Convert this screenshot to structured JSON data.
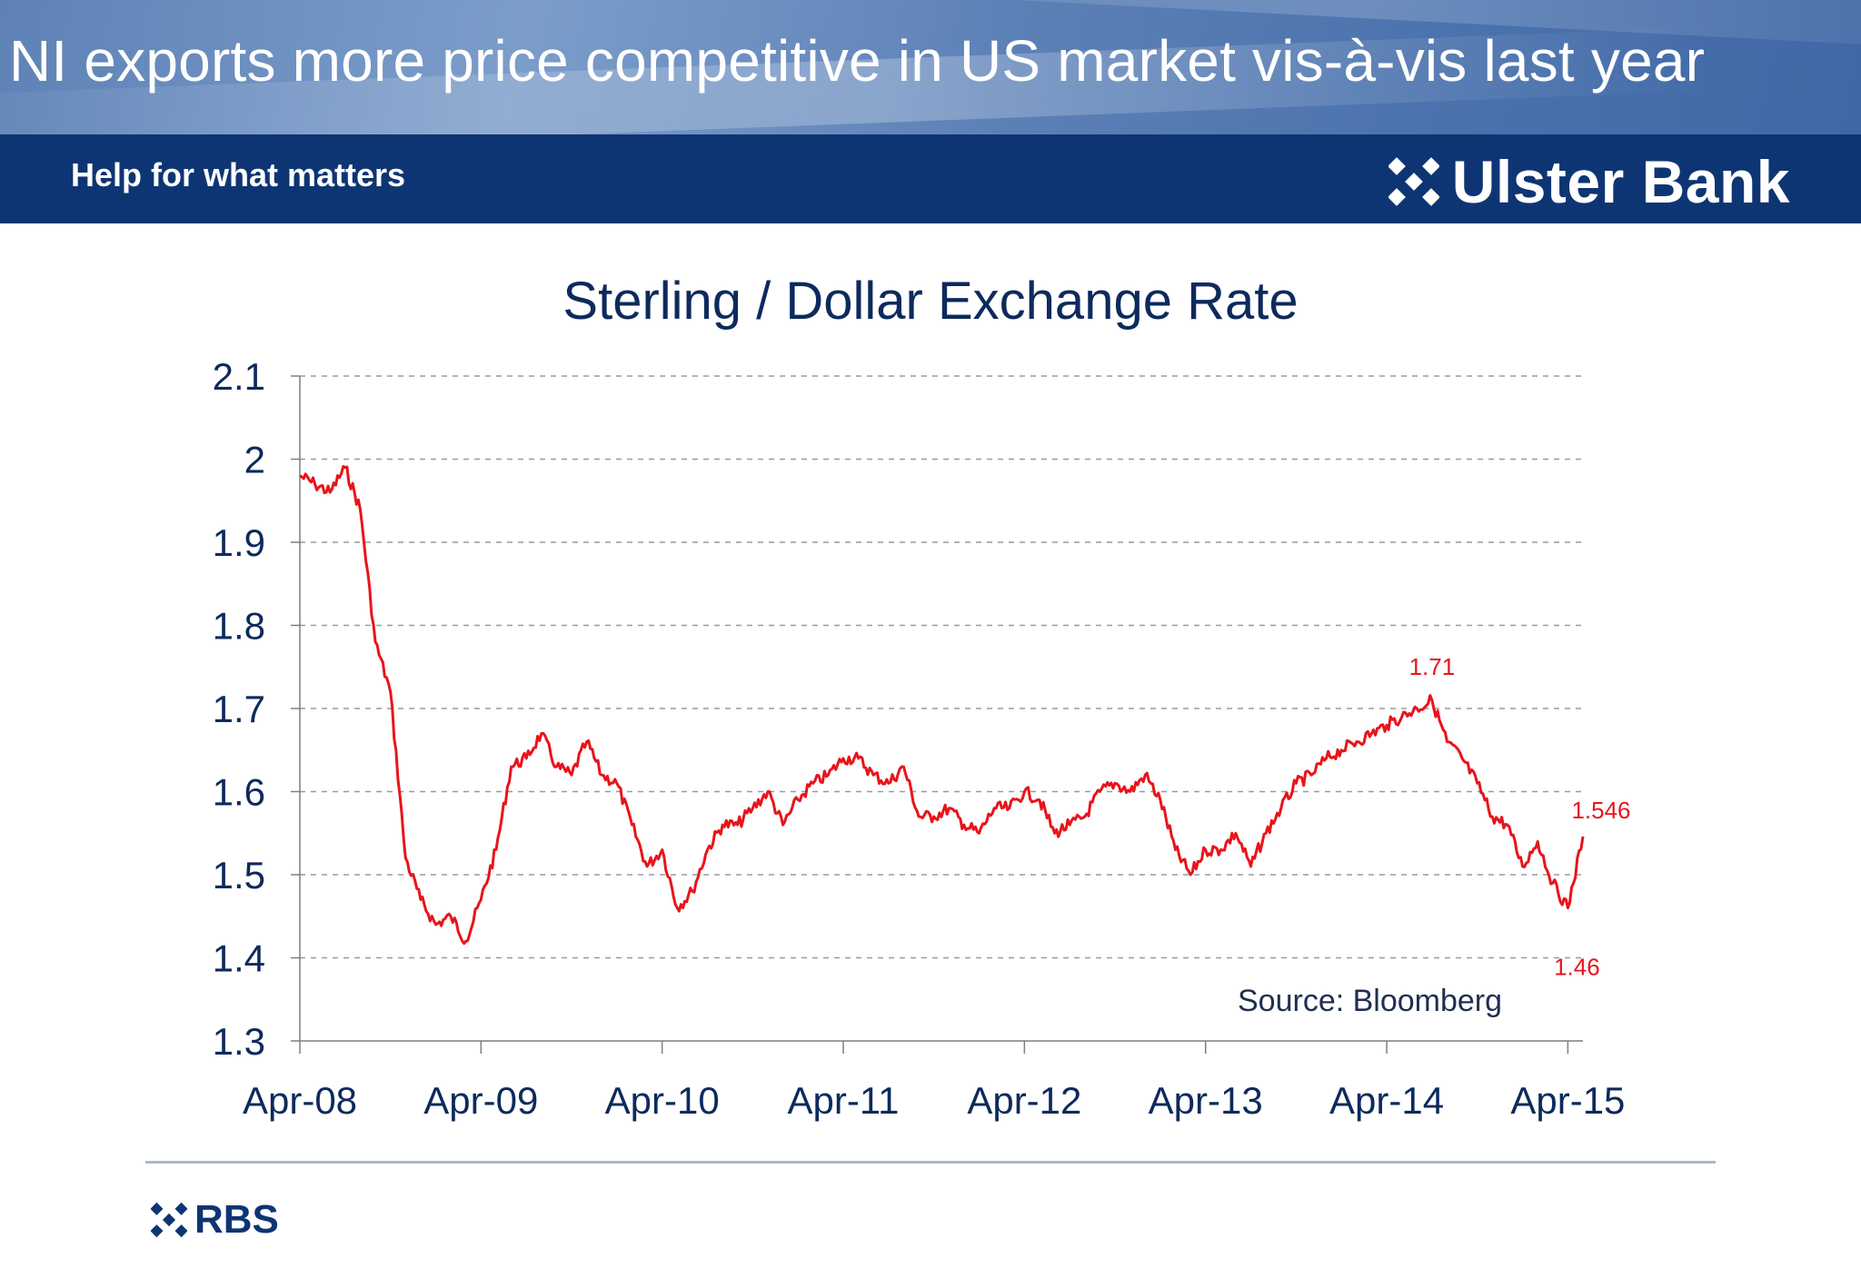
{
  "header": {
    "title": "NI exports more price competitive in US market vis-à-vis last year",
    "tagline": "Help for what matters",
    "logo_text": "Ulster Bank",
    "logo_icon": "daisy-mark-icon"
  },
  "footer": {
    "logo_text": "RBS",
    "logo_icon": "daisy-mark-icon"
  },
  "colors": {
    "title_band": "#5b80b6",
    "brand_bar": "#0e3573",
    "series": "#e8141b",
    "axis_text": "#0d2a5c"
  },
  "chart_data": {
    "type": "line",
    "title": "Sterling / Dollar Exchange Rate",
    "xlabel": "",
    "ylabel": "",
    "ylim": [
      1.3,
      2.1
    ],
    "yticks": [
      "1.3",
      "1.4",
      "1.5",
      "1.6",
      "1.7",
      "1.8",
      "1.9",
      "2",
      "2.1"
    ],
    "xticks": [
      "Apr-08",
      "Apr-09",
      "Apr-10",
      "Apr-11",
      "Apr-12",
      "Apr-13",
      "Apr-14",
      "Apr-15"
    ],
    "xlim": [
      "2008-04",
      "2015-05"
    ],
    "grid": "horizontal dashed",
    "source": "Source: Bloomberg",
    "series": [
      {
        "points": [
          [
            "2008-04",
            1.98
          ],
          [
            "2008-05",
            1.97
          ],
          [
            "2008-06",
            1.96
          ],
          [
            "2008-07",
            1.99
          ],
          [
            "2008-08",
            1.94
          ],
          [
            "2008-09",
            1.78
          ],
          [
            "2008-10",
            1.72
          ],
          [
            "2008-11",
            1.52
          ],
          [
            "2008-12",
            1.47
          ],
          [
            "2009-01",
            1.44
          ],
          [
            "2009-02",
            1.45
          ],
          [
            "2009-03",
            1.42
          ],
          [
            "2009-04",
            1.47
          ],
          [
            "2009-05",
            1.53
          ],
          [
            "2009-06",
            1.63
          ],
          [
            "2009-07",
            1.64
          ],
          [
            "2009-08",
            1.67
          ],
          [
            "2009-09",
            1.63
          ],
          [
            "2009-10",
            1.62
          ],
          [
            "2009-11",
            1.66
          ],
          [
            "2009-12",
            1.62
          ],
          [
            "2010-01",
            1.61
          ],
          [
            "2010-02",
            1.56
          ],
          [
            "2010-03",
            1.51
          ],
          [
            "2010-04",
            1.53
          ],
          [
            "2010-05",
            1.46
          ],
          [
            "2010-06",
            1.48
          ],
          [
            "2010-07",
            1.53
          ],
          [
            "2010-08",
            1.56
          ],
          [
            "2010-09",
            1.56
          ],
          [
            "2010-10",
            1.58
          ],
          [
            "2010-11",
            1.6
          ],
          [
            "2010-12",
            1.56
          ],
          [
            "2011-01",
            1.59
          ],
          [
            "2011-02",
            1.61
          ],
          [
            "2011-03",
            1.62
          ],
          [
            "2011-04",
            1.64
          ],
          [
            "2011-05",
            1.64
          ],
          [
            "2011-06",
            1.62
          ],
          [
            "2011-07",
            1.61
          ],
          [
            "2011-08",
            1.63
          ],
          [
            "2011-09",
            1.57
          ],
          [
            "2011-10",
            1.57
          ],
          [
            "2011-11",
            1.58
          ],
          [
            "2011-12",
            1.56
          ],
          [
            "2012-01",
            1.55
          ],
          [
            "2012-02",
            1.58
          ],
          [
            "2012-03",
            1.58
          ],
          [
            "2012-04",
            1.6
          ],
          [
            "2012-05",
            1.59
          ],
          [
            "2012-06",
            1.55
          ],
          [
            "2012-07",
            1.56
          ],
          [
            "2012-08",
            1.57
          ],
          [
            "2012-09",
            1.6
          ],
          [
            "2012-10",
            1.61
          ],
          [
            "2012-11",
            1.6
          ],
          [
            "2012-12",
            1.62
          ],
          [
            "2013-01",
            1.59
          ],
          [
            "2013-02",
            1.53
          ],
          [
            "2013-03",
            1.5
          ],
          [
            "2013-04",
            1.53
          ],
          [
            "2013-05",
            1.53
          ],
          [
            "2013-06",
            1.55
          ],
          [
            "2013-07",
            1.51
          ],
          [
            "2013-08",
            1.55
          ],
          [
            "2013-09",
            1.58
          ],
          [
            "2013-10",
            1.61
          ],
          [
            "2013-11",
            1.62
          ],
          [
            "2013-12",
            1.64
          ],
          [
            "2014-01",
            1.65
          ],
          [
            "2014-02",
            1.66
          ],
          [
            "2014-03",
            1.67
          ],
          [
            "2014-04",
            1.68
          ],
          [
            "2014-05",
            1.69
          ],
          [
            "2014-06",
            1.7
          ],
          [
            "2014-07",
            1.71
          ],
          [
            "2014-08",
            1.66
          ],
          [
            "2014-09",
            1.64
          ],
          [
            "2014-10",
            1.61
          ],
          [
            "2014-11",
            1.57
          ],
          [
            "2014-12",
            1.56
          ],
          [
            "2015-01",
            1.51
          ],
          [
            "2015-02",
            1.54
          ],
          [
            "2015-03",
            1.49
          ],
          [
            "2015-04",
            1.46
          ],
          [
            "2015-05",
            1.546
          ]
        ]
      }
    ],
    "annotations": [
      {
        "text": "1.71",
        "x": "2014-07",
        "y": 1.71
      },
      {
        "text": "1.546",
        "x": "2015-05",
        "y": 1.546
      },
      {
        "text": "1.46",
        "x": "2015-04",
        "y": 1.46
      }
    ]
  }
}
